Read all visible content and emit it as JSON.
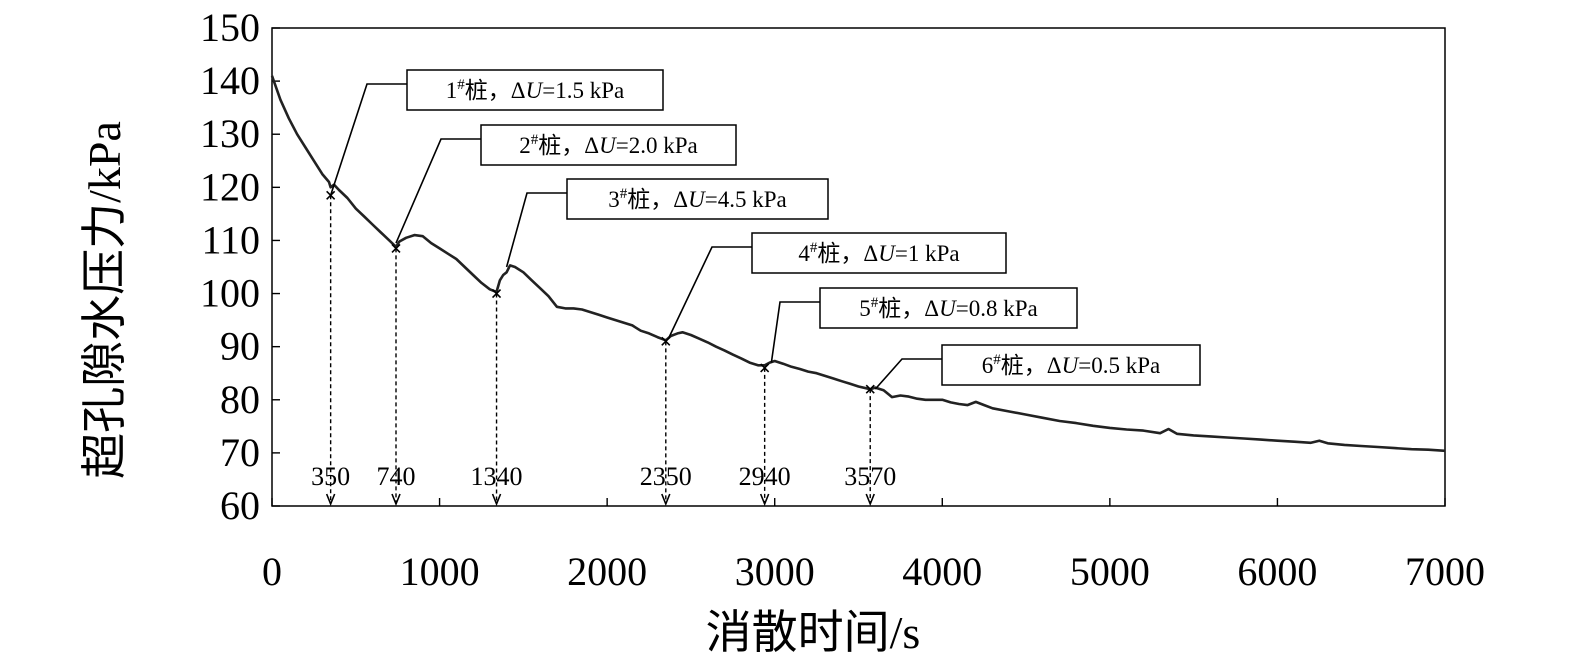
{
  "chart_data": {
    "type": "line",
    "ylabel": "超孔隙水压力/kPa",
    "xlabel": "消散时间/s",
    "xlim": [
      0,
      7000
    ],
    "ylim": [
      60,
      150
    ],
    "x_ticks": [
      0,
      1000,
      2000,
      3000,
      4000,
      5000,
      6000,
      7000
    ],
    "y_ticks": [
      60,
      70,
      80,
      90,
      100,
      110,
      120,
      130,
      140,
      150
    ],
    "grid": false,
    "series": [
      {
        "points": [
          [
            0,
            141
          ],
          [
            50,
            136.5
          ],
          [
            100,
            133
          ],
          [
            150,
            130
          ],
          [
            200,
            127.5
          ],
          [
            250,
            125
          ],
          [
            300,
            122.5
          ],
          [
            340,
            121
          ],
          [
            350,
            120
          ],
          [
            370,
            120.5
          ],
          [
            400,
            119.5
          ],
          [
            450,
            118
          ],
          [
            500,
            116
          ],
          [
            550,
            114.5
          ],
          [
            600,
            113
          ],
          [
            650,
            111.5
          ],
          [
            700,
            110
          ],
          [
            740,
            108.8
          ],
          [
            760,
            109.8
          ],
          [
            800,
            110.5
          ],
          [
            850,
            111
          ],
          [
            900,
            110.8
          ],
          [
            950,
            109.5
          ],
          [
            1000,
            108.5
          ],
          [
            1050,
            107.5
          ],
          [
            1100,
            106.5
          ],
          [
            1150,
            105
          ],
          [
            1200,
            103.5
          ],
          [
            1250,
            102
          ],
          [
            1300,
            100.8
          ],
          [
            1340,
            100.3
          ],
          [
            1360,
            102.5
          ],
          [
            1380,
            103.5
          ],
          [
            1400,
            104
          ],
          [
            1420,
            105.3
          ],
          [
            1450,
            105
          ],
          [
            1500,
            104
          ],
          [
            1550,
            102.5
          ],
          [
            1600,
            101
          ],
          [
            1650,
            99.5
          ],
          [
            1700,
            97.5
          ],
          [
            1750,
            97.2
          ],
          [
            1800,
            97.2
          ],
          [
            1850,
            97
          ],
          [
            1900,
            96.5
          ],
          [
            1950,
            96
          ],
          [
            2000,
            95.5
          ],
          [
            2050,
            95
          ],
          [
            2100,
            94.5
          ],
          [
            2150,
            94
          ],
          [
            2200,
            93
          ],
          [
            2250,
            92.5
          ],
          [
            2300,
            91.8
          ],
          [
            2350,
            91.2
          ],
          [
            2380,
            92
          ],
          [
            2420,
            92.5
          ],
          [
            2450,
            92.7
          ],
          [
            2500,
            92.2
          ],
          [
            2550,
            91.5
          ],
          [
            2600,
            90.8
          ],
          [
            2650,
            90
          ],
          [
            2700,
            89.3
          ],
          [
            2750,
            88.5
          ],
          [
            2800,
            87.8
          ],
          [
            2850,
            87
          ],
          [
            2900,
            86.5
          ],
          [
            2940,
            86.5
          ],
          [
            2970,
            87
          ],
          [
            3000,
            87.3
          ],
          [
            3050,
            86.8
          ],
          [
            3100,
            86.2
          ],
          [
            3150,
            85.8
          ],
          [
            3200,
            85.3
          ],
          [
            3250,
            85
          ],
          [
            3300,
            84.5
          ],
          [
            3350,
            84
          ],
          [
            3400,
            83.5
          ],
          [
            3450,
            83
          ],
          [
            3500,
            82.5
          ],
          [
            3570,
            82
          ],
          [
            3600,
            82.3
          ],
          [
            3650,
            81.8
          ],
          [
            3700,
            80.5
          ],
          [
            3750,
            80.8
          ],
          [
            3800,
            80.6
          ],
          [
            3850,
            80.2
          ],
          [
            3900,
            80
          ],
          [
            4000,
            80
          ],
          [
            4050,
            79.5
          ],
          [
            4100,
            79.2
          ],
          [
            4150,
            79
          ],
          [
            4200,
            79.6
          ],
          [
            4250,
            79
          ],
          [
            4300,
            78.4
          ],
          [
            4400,
            77.8
          ],
          [
            4500,
            77.2
          ],
          [
            4600,
            76.6
          ],
          [
            4700,
            76
          ],
          [
            4800,
            75.6
          ],
          [
            4900,
            75.1
          ],
          [
            5000,
            74.7
          ],
          [
            5100,
            74.4
          ],
          [
            5200,
            74.2
          ],
          [
            5300,
            73.7
          ],
          [
            5350,
            74.5
          ],
          [
            5400,
            73.6
          ],
          [
            5500,
            73.3
          ],
          [
            5600,
            73.1
          ],
          [
            5700,
            72.9
          ],
          [
            5800,
            72.7
          ],
          [
            5900,
            72.5
          ],
          [
            6000,
            72.3
          ],
          [
            6100,
            72.1
          ],
          [
            6200,
            71.9
          ],
          [
            6250,
            72.3
          ],
          [
            6300,
            71.8
          ],
          [
            6400,
            71.5
          ],
          [
            6500,
            71.3
          ],
          [
            6600,
            71.1
          ],
          [
            6700,
            70.9
          ],
          [
            6800,
            70.7
          ],
          [
            6900,
            70.6
          ],
          [
            7000,
            70.4
          ]
        ]
      }
    ],
    "markers": [
      {
        "x": 350,
        "y": 118.5,
        "label": "350"
      },
      {
        "x": 740,
        "y": 108.5,
        "label": "740"
      },
      {
        "x": 1340,
        "y": 100,
        "label": "1340"
      },
      {
        "x": 2350,
        "y": 91,
        "label": "2350"
      },
      {
        "x": 2940,
        "y": 86,
        "label": "2940"
      },
      {
        "x": 3570,
        "y": 82,
        "label": "3570"
      }
    ],
    "annotations": [
      {
        "pile": "1",
        "sup": "#",
        "suffix": "桩，",
        "delta": "Δ",
        "var": "U",
        "value": "=1.5 kPa",
        "point": [
          350,
          118.5
        ]
      },
      {
        "pile": "2",
        "sup": "#",
        "suffix": "桩，",
        "delta": "Δ",
        "var": "U",
        "value": "=2.0 kPa",
        "point": [
          740,
          109.5
        ]
      },
      {
        "pile": "3",
        "sup": "#",
        "suffix": "桩，",
        "delta": "Δ",
        "var": "U",
        "value": "=4.5 kPa",
        "point": [
          1400,
          105
        ]
      },
      {
        "pile": "4",
        "sup": "#",
        "suffix": "桩，",
        "delta": "Δ",
        "var": "U",
        "value": "=1 kPa",
        "point": [
          2370,
          91.8
        ]
      },
      {
        "pile": "5",
        "sup": "#",
        "suffix": "桩，",
        "delta": "Δ",
        "var": "U",
        "value": "=0.8 kPa",
        "point": [
          2980,
          87
        ]
      },
      {
        "pile": "6",
        "sup": "#",
        "suffix": "桩，",
        "delta": "Δ",
        "var": "U",
        "value": "=0.5 kPa",
        "point": [
          3600,
          82
        ]
      }
    ]
  }
}
